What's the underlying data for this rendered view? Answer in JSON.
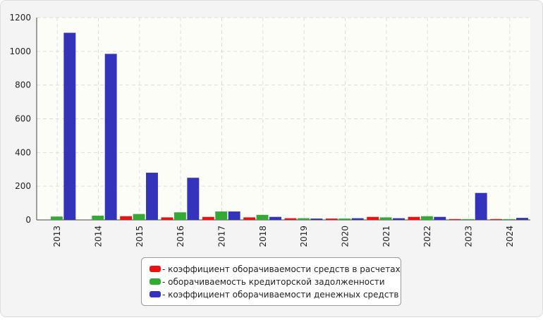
{
  "chart_data": {
    "type": "bar",
    "categories": [
      "2013",
      "2014",
      "2015",
      "2016",
      "2017",
      "2018",
      "2019",
      "2020",
      "2021",
      "2022",
      "2023",
      "2024"
    ],
    "series": [
      {
        "name": "- коэффициент оборачиваемости средств в расчетах",
        "color": "#ee1111",
        "values": [
          0,
          0,
          22,
          15,
          18,
          15,
          10,
          8,
          18,
          18,
          5,
          5
        ]
      },
      {
        "name": "- оборачиваемость кредиторской задолженности",
        "color": "#33aa33",
        "values": [
          20,
          25,
          35,
          45,
          50,
          30,
          10,
          8,
          15,
          22,
          5,
          5
        ]
      },
      {
        "name": "- коэффициент оборачиваемости денежных средств",
        "color": "#3333bb",
        "values": [
          1110,
          985,
          280,
          250,
          50,
          18,
          8,
          10,
          10,
          18,
          160,
          12
        ]
      }
    ],
    "ylim": [
      0,
      1200
    ],
    "yticks": [
      0,
      200,
      400,
      600,
      800,
      1000,
      1200
    ],
    "grid": true
  }
}
